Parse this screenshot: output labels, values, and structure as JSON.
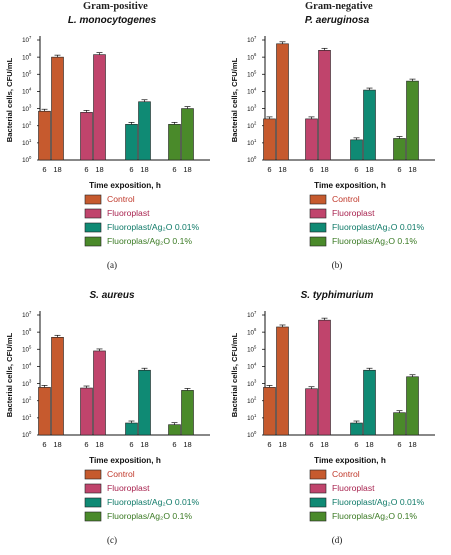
{
  "headers": {
    "left": "Gram-positive",
    "right": "Gram-negative"
  },
  "legend": [
    {
      "label": "Control",
      "color": "#c65a2e",
      "text_color": "#c0392b"
    },
    {
      "label": "Fluoroplast",
      "color": "#c0446c",
      "text_color": "#a8234f"
    },
    {
      "label": "Fluoroplast/Ag₂O 0.01%",
      "color": "#0f8a74",
      "text_color": "#0f7a68"
    },
    {
      "label": "Fluoroplas/Ag₂O 0.1%",
      "color": "#4a8a2a",
      "text_color": "#3a7a23"
    }
  ],
  "chart_data": [
    {
      "type": "bar",
      "title": "L. monocytogenes",
      "panel_label": "(a)",
      "xlabel": "Time exposition, h",
      "ylabel": "Bacterial cells, CFU/mL",
      "y_scale": "log",
      "ylim": [
        1,
        10000000
      ],
      "y_ticks": [
        {
          "b": "10",
          "e": "0"
        },
        {
          "b": "10",
          "e": "1"
        },
        {
          "b": "10",
          "e": "2"
        },
        {
          "b": "10",
          "e": "3"
        },
        {
          "b": "10",
          "e": "4"
        },
        {
          "b": "10",
          "e": "5"
        },
        {
          "b": "10",
          "e": "6"
        },
        {
          "b": "10",
          "e": "7"
        }
      ],
      "categories": [
        "6",
        "18"
      ],
      "series": [
        {
          "name": "Control",
          "values": [
            700,
            1000000
          ]
        },
        {
          "name": "Fluoroplast",
          "values": [
            600,
            1400000
          ]
        },
        {
          "name": "Fluoroplast/Ag₂O 0.01%",
          "values": [
            120,
            2500
          ]
        },
        {
          "name": "Fluoroplas/Ag₂O 0.1%",
          "values": [
            120,
            1000
          ]
        }
      ]
    },
    {
      "type": "bar",
      "title": "P. aeruginosa",
      "panel_label": "(b)",
      "xlabel": "Time exposition, h",
      "ylabel": "Bacterial cells, CFU/mL",
      "y_scale": "log",
      "ylim": [
        1,
        10000000
      ],
      "y_ticks": [
        {
          "b": "10",
          "e": "0"
        },
        {
          "b": "10",
          "e": "1"
        },
        {
          "b": "10",
          "e": "2"
        },
        {
          "b": "10",
          "e": "3"
        },
        {
          "b": "10",
          "e": "4"
        },
        {
          "b": "10",
          "e": "5"
        },
        {
          "b": "10",
          "e": "6"
        },
        {
          "b": "10",
          "e": "7"
        }
      ],
      "categories": [
        "6",
        "18"
      ],
      "series": [
        {
          "name": "Control",
          "values": [
            250,
            6000000
          ]
        },
        {
          "name": "Fluoroplast",
          "values": [
            250,
            2500000
          ]
        },
        {
          "name": "Fluoroplast/Ag₂O 0.01%",
          "values": [
            15,
            12000
          ]
        },
        {
          "name": "Fluoroplas/Ag₂O 0.1%",
          "values": [
            18,
            40000
          ]
        }
      ]
    },
    {
      "type": "bar",
      "title": "S. aureus",
      "panel_label": "(c)",
      "xlabel": "Time exposition, h",
      "ylabel": "Bacterial cells, CFU/mL",
      "y_scale": "log",
      "ylim": [
        1,
        10000000
      ],
      "y_ticks": [
        {
          "b": "10",
          "e": "0"
        },
        {
          "b": "10",
          "e": "1"
        },
        {
          "b": "10",
          "e": "2"
        },
        {
          "b": "10",
          "e": "3"
        },
        {
          "b": "10",
          "e": "4"
        },
        {
          "b": "10",
          "e": "5"
        },
        {
          "b": "10",
          "e": "6"
        },
        {
          "b": "10",
          "e": "7"
        }
      ],
      "categories": [
        "6",
        "18"
      ],
      "series": [
        {
          "name": "Control",
          "values": [
            600,
            500000
          ]
        },
        {
          "name": "Fluoroplast",
          "values": [
            550,
            80000
          ]
        },
        {
          "name": "Fluoroplast/Ag₂O 0.01%",
          "values": [
            5,
            6000
          ]
        },
        {
          "name": "Fluoroplas/Ag₂O 0.1%",
          "values": [
            4,
            400
          ]
        }
      ]
    },
    {
      "type": "bar",
      "title": "S. typhimurium",
      "panel_label": "(d)",
      "xlabel": "Time exposition, h",
      "ylabel": "Bacterial cells, CFU/mL",
      "y_scale": "log",
      "ylim": [
        1,
        10000000
      ],
      "y_ticks": [
        {
          "b": "10",
          "e": "0"
        },
        {
          "b": "10",
          "e": "1"
        },
        {
          "b": "10",
          "e": "2"
        },
        {
          "b": "10",
          "e": "3"
        },
        {
          "b": "10",
          "e": "4"
        },
        {
          "b": "10",
          "e": "5"
        },
        {
          "b": "10",
          "e": "6"
        },
        {
          "b": "10",
          "e": "7"
        }
      ],
      "categories": [
        "6",
        "18"
      ],
      "series": [
        {
          "name": "Control",
          "values": [
            600,
            2000000
          ]
        },
        {
          "name": "Fluoroplast",
          "values": [
            500,
            5000000
          ]
        },
        {
          "name": "Fluoroplast/Ag₂O 0.01%",
          "values": [
            5,
            6000
          ]
        },
        {
          "name": "Fluoroplas/Ag₂O 0.1%",
          "values": [
            20,
            2500
          ]
        }
      ]
    }
  ]
}
